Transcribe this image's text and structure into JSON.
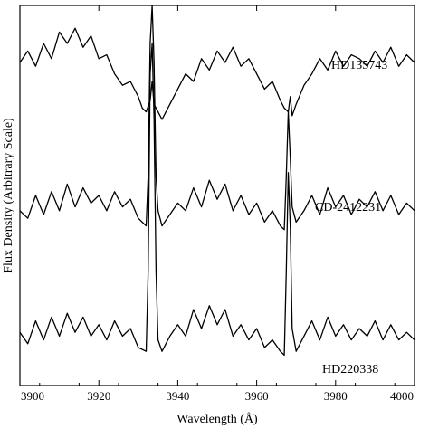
{
  "chart_data": {
    "type": "line",
    "title": "",
    "xlabel": "Wavelength (Å)",
    "ylabel": "Flux Density (Arbitrary Scale)",
    "xlim": [
      3900,
      4000
    ],
    "x_ticks": [
      3900,
      3920,
      3940,
      3960,
      3980,
      4000
    ],
    "x_tick_labels": [
      "3900",
      "3920",
      "3940",
      "3960",
      "3980",
      "4000"
    ],
    "y_scale": "arbitrary (stacked spectra, no numeric ticks)",
    "grid": false,
    "legend": "none (series labelled directly under each spectrum)",
    "series": [
      {
        "name": "HD135743",
        "baseline": 0.8,
        "x": [
          3900,
          3902,
          3904,
          3906,
          3908,
          3910,
          3912,
          3914,
          3916,
          3918,
          3920,
          3922,
          3924,
          3926,
          3928,
          3930,
          3931,
          3932,
          3933,
          3933.5,
          3934,
          3935,
          3936,
          3938,
          3940,
          3942,
          3944,
          3946,
          3948,
          3950,
          3952,
          3954,
          3956,
          3958,
          3960,
          3962,
          3964,
          3966,
          3967,
          3968,
          3968.5,
          3969,
          3970,
          3972,
          3974,
          3976,
          3978,
          3980,
          3982,
          3984,
          3986,
          3988,
          3990,
          3992,
          3994,
          3996,
          3998,
          4000
        ],
        "values": [
          0.85,
          0.88,
          0.84,
          0.9,
          0.86,
          0.93,
          0.9,
          0.94,
          0.89,
          0.92,
          0.86,
          0.87,
          0.82,
          0.79,
          0.8,
          0.76,
          0.73,
          0.72,
          0.75,
          0.8,
          0.74,
          0.72,
          0.7,
          0.74,
          0.78,
          0.82,
          0.8,
          0.86,
          0.83,
          0.88,
          0.85,
          0.89,
          0.84,
          0.86,
          0.82,
          0.78,
          0.8,
          0.75,
          0.73,
          0.72,
          0.76,
          0.71,
          0.74,
          0.79,
          0.82,
          0.86,
          0.83,
          0.88,
          0.84,
          0.87,
          0.86,
          0.84,
          0.88,
          0.85,
          0.89,
          0.84,
          0.87,
          0.85
        ]
      },
      {
        "name": "CD-2412231",
        "baseline": 0.47,
        "x": [
          3900,
          3902,
          3904,
          3906,
          3908,
          3910,
          3912,
          3914,
          3916,
          3918,
          3920,
          3922,
          3924,
          3926,
          3928,
          3930,
          3932,
          3932.5,
          3933,
          3933.5,
          3934,
          3934.5,
          3935,
          3936,
          3938,
          3940,
          3942,
          3944,
          3946,
          3948,
          3950,
          3952,
          3954,
          3956,
          3958,
          3960,
          3962,
          3964,
          3966,
          3967,
          3967.5,
          3968,
          3968.5,
          3969,
          3970,
          3972,
          3974,
          3976,
          3978,
          3980,
          3982,
          3984,
          3986,
          3988,
          3990,
          3992,
          3994,
          3996,
          3998,
          4000
        ],
        "values": [
          0.46,
          0.44,
          0.5,
          0.45,
          0.51,
          0.46,
          0.53,
          0.47,
          0.52,
          0.48,
          0.5,
          0.46,
          0.51,
          0.47,
          0.49,
          0.44,
          0.42,
          0.55,
          0.9,
          1.0,
          0.85,
          0.55,
          0.46,
          0.42,
          0.45,
          0.48,
          0.46,
          0.52,
          0.47,
          0.54,
          0.49,
          0.53,
          0.46,
          0.5,
          0.45,
          0.48,
          0.43,
          0.46,
          0.42,
          0.41,
          0.55,
          0.72,
          0.6,
          0.47,
          0.43,
          0.46,
          0.5,
          0.45,
          0.52,
          0.47,
          0.5,
          0.45,
          0.49,
          0.47,
          0.51,
          0.46,
          0.5,
          0.45,
          0.48,
          0.46
        ]
      },
      {
        "name": "HD220338",
        "baseline": 0.15,
        "x": [
          3900,
          3902,
          3904,
          3906,
          3908,
          3910,
          3912,
          3914,
          3916,
          3918,
          3920,
          3922,
          3924,
          3926,
          3928,
          3930,
          3932,
          3932.5,
          3933,
          3933.5,
          3934,
          3934.5,
          3935,
          3936,
          3938,
          3940,
          3942,
          3944,
          3946,
          3948,
          3950,
          3952,
          3954,
          3956,
          3958,
          3960,
          3962,
          3964,
          3966,
          3967,
          3967.5,
          3968,
          3968.5,
          3969,
          3970,
          3972,
          3974,
          3976,
          3978,
          3980,
          3982,
          3984,
          3986,
          3988,
          3990,
          3992,
          3994,
          3996,
          3998,
          4000
        ],
        "values": [
          0.14,
          0.11,
          0.17,
          0.12,
          0.18,
          0.13,
          0.19,
          0.14,
          0.18,
          0.13,
          0.16,
          0.12,
          0.17,
          0.13,
          0.15,
          0.1,
          0.09,
          0.3,
          0.82,
          0.9,
          0.7,
          0.3,
          0.12,
          0.09,
          0.13,
          0.16,
          0.13,
          0.2,
          0.15,
          0.21,
          0.16,
          0.2,
          0.13,
          0.16,
          0.12,
          0.15,
          0.1,
          0.12,
          0.09,
          0.08,
          0.3,
          0.56,
          0.42,
          0.15,
          0.09,
          0.13,
          0.17,
          0.12,
          0.18,
          0.13,
          0.16,
          0.12,
          0.15,
          0.13,
          0.17,
          0.12,
          0.16,
          0.12,
          0.14,
          0.12
        ]
      }
    ]
  }
}
